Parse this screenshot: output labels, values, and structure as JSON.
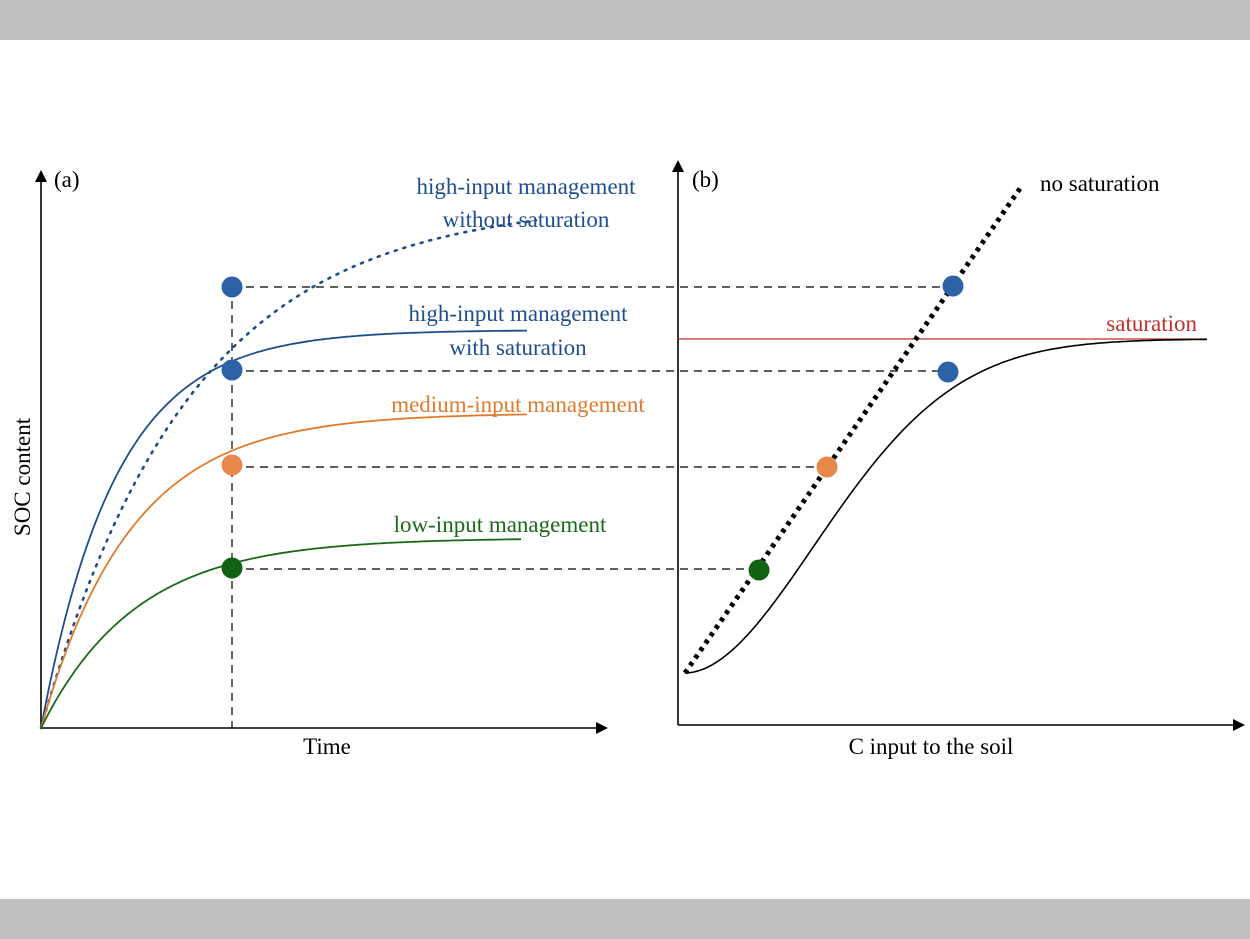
{
  "colors": {
    "high_input": "#1f4e8c",
    "marker_blue": "#2e62a6",
    "medium_input": "#e07b2e",
    "marker_orange": "#e8894a",
    "low_input": "#1a6a1a",
    "marker_green": "#136213",
    "saturation": "#c0302a",
    "axis": "#000000"
  },
  "panel_a": {
    "label": "(a)",
    "xlabel": "Time",
    "ylabel": "SOC content",
    "curves": {
      "high_without_saturation": {
        "line1": "high-input management",
        "line2": "without saturation"
      },
      "high_with_saturation": {
        "line1": "high-input management",
        "line2": "with saturation"
      },
      "medium": {
        "label": "medium-input management"
      },
      "low": {
        "label": "low-input management"
      }
    }
  },
  "panel_b": {
    "label": "(b)",
    "xlabel": "C input to the soil",
    "no_saturation_label": "no saturation",
    "saturation_label": "saturation"
  }
}
